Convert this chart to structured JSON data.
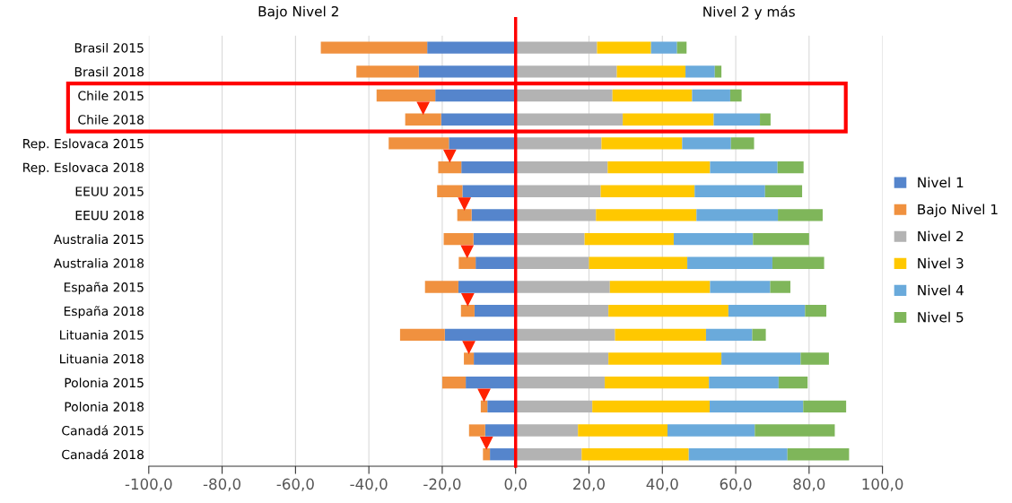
{
  "chart_data": {
    "type": "bar",
    "orientation": "horizontal",
    "stacked": true,
    "categories": [
      "Brasil 2015",
      "Brasil 2018",
      "Chile 2015",
      "Chile 2018",
      "Rep. Eslovaca 2015",
      "Rep. Eslovaca 2018",
      "EEUU 2015",
      "EEUU 2018",
      "Australia 2015",
      "Australia 2018",
      "España 2015",
      "España 2018",
      "Lituania 2015",
      "Lituania 2018",
      "Polonia 2015",
      "Polonia 2018",
      "Canadá 2015",
      "Canadá 2018"
    ],
    "series": [
      {
        "name": "Nivel 1",
        "color": "#5585cc",
        "values": [
          -24.1,
          -26.4,
          -21.9,
          -20.3,
          -18.2,
          -14.8,
          -14.5,
          -12.0,
          -11.5,
          -10.9,
          -15.6,
          -11.2,
          -19.3,
          -11.4,
          -13.6,
          -7.7,
          -8.3,
          -7.0
        ]
      },
      {
        "name": "Bajo Nivel 1",
        "color": "#f0913f",
        "values": [
          -29.0,
          -17.0,
          -16.0,
          -9.8,
          -16.4,
          -6.3,
          -6.9,
          -3.9,
          -8.1,
          -4.6,
          -9.1,
          -3.7,
          -12.2,
          -2.7,
          -6.4,
          -1.8,
          -4.4,
          -1.9
        ]
      },
      {
        "name": "Nivel 2",
        "color": "#b3b3b3",
        "values": [
          22.2,
          27.6,
          26.4,
          29.2,
          23.4,
          25.1,
          23.2,
          21.9,
          18.8,
          20.0,
          25.7,
          25.3,
          27.1,
          25.3,
          24.3,
          20.9,
          17.0,
          18.0
        ]
      },
      {
        "name": "Nivel 3",
        "color": "#ffc800",
        "values": [
          14.7,
          18.7,
          21.7,
          24.8,
          22.0,
          27.9,
          25.6,
          27.4,
          24.3,
          26.8,
          27.3,
          32.7,
          24.8,
          30.8,
          28.4,
          32.0,
          24.4,
          29.2
        ]
      },
      {
        "name": "Nivel 4",
        "color": "#6aaadb",
        "values": [
          7.1,
          8.0,
          10.4,
          12.6,
          13.3,
          18.4,
          19.2,
          22.2,
          21.6,
          23.2,
          16.4,
          20.9,
          12.6,
          21.6,
          19.0,
          25.5,
          23.8,
          26.9
        ]
      },
      {
        "name": "Nivel 5",
        "color": "#7fb65a",
        "values": [
          2.6,
          1.8,
          3.1,
          2.9,
          6.3,
          7.1,
          10.1,
          12.2,
          15.3,
          14.1,
          5.5,
          5.8,
          3.7,
          7.7,
          7.9,
          11.7,
          21.8,
          16.8
        ]
      }
    ],
    "xlim": [
      -100,
      100
    ],
    "xticks": [
      {
        "value": -100,
        "label": "-100,0"
      },
      {
        "value": -80,
        "label": "-80,0"
      },
      {
        "value": -60,
        "label": "-60,0"
      },
      {
        "value": -40,
        "label": "-40,0"
      },
      {
        "value": -20,
        "label": "-20,0"
      },
      {
        "value": 0,
        "label": "0,0"
      },
      {
        "value": 20,
        "label": "20,0"
      },
      {
        "value": 40,
        "label": "40,0"
      },
      {
        "value": 60,
        "label": "60,0"
      },
      {
        "value": 80,
        "label": "80,0"
      },
      {
        "value": 100,
        "label": "100,0"
      }
    ],
    "grid": "x",
    "legend": "right",
    "ref_lines": [
      {
        "axis": "x",
        "value": 0,
        "color": "#ff0000"
      }
    ],
    "annotations": [
      "Bajo Nivel 2",
      "Nivel 2 y más"
    ]
  }
}
